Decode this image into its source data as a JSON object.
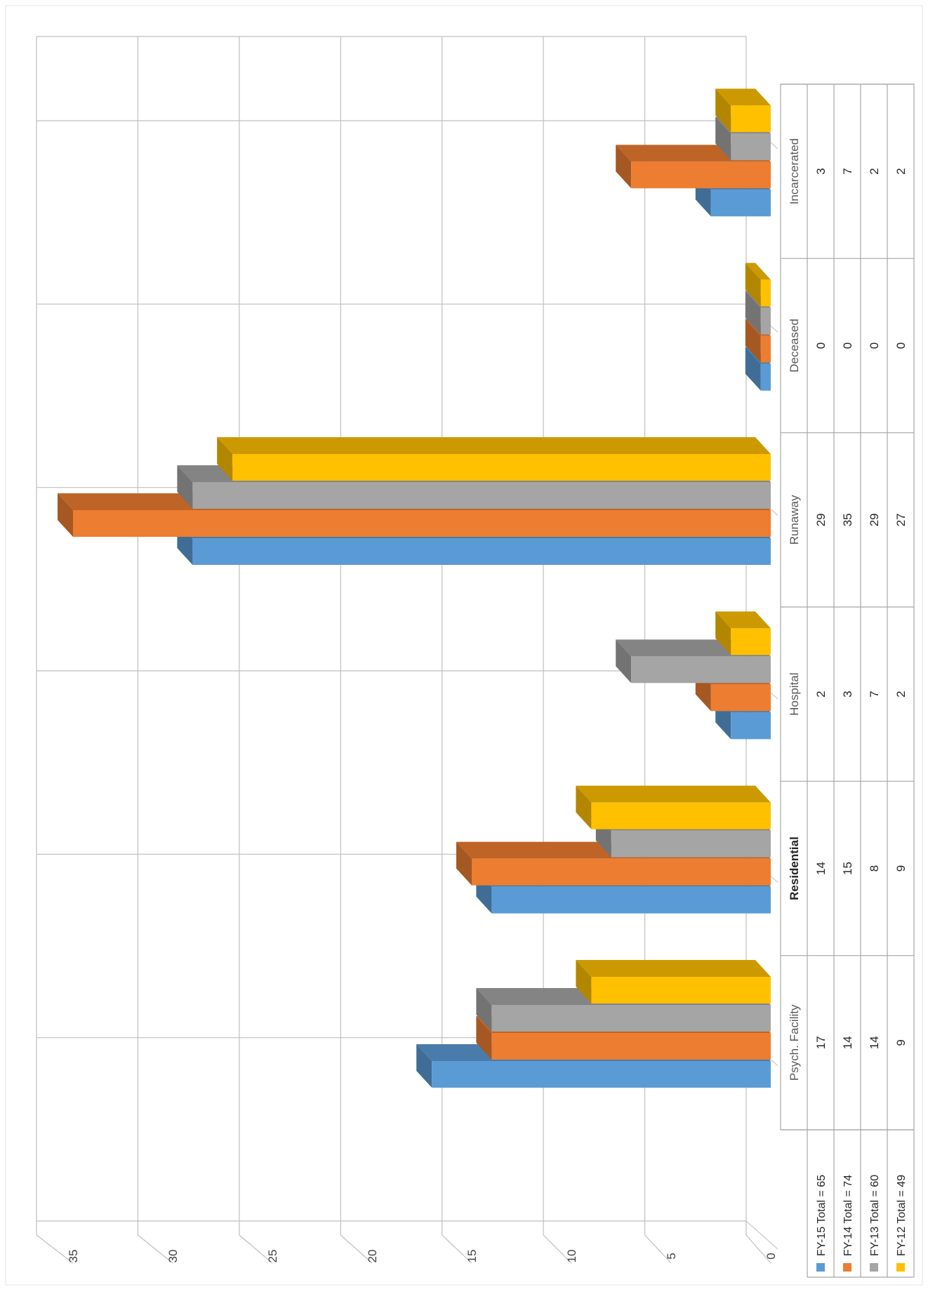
{
  "chart_data": {
    "type": "bar",
    "orientation": "rotated-90-clockwise-3d-clustered-column",
    "categories": [
      "Psych. Facility",
      "Residential",
      "Hospital",
      "Runaway",
      "Deceased",
      "Incarcerated"
    ],
    "emphasized_category": "Residential",
    "series": [
      {
        "name": "FY-15 Total = 65",
        "color": "#5b9bd5",
        "values": [
          17,
          14,
          2,
          29,
          0,
          3
        ]
      },
      {
        "name": "FY-14 Total = 74",
        "color": "#ed7d31",
        "values": [
          14,
          15,
          3,
          35,
          0,
          7
        ]
      },
      {
        "name": "FY-13 Total = 60",
        "color": "#a5a5a5",
        "values": [
          14,
          8,
          7,
          29,
          0,
          2
        ]
      },
      {
        "name": "FY-12 Total = 49",
        "color": "#ffc000",
        "values": [
          9,
          9,
          2,
          27,
          0,
          2
        ]
      }
    ],
    "yticks": [
      0,
      5,
      10,
      15,
      20,
      25,
      30,
      35
    ],
    "ylim": [
      0,
      35
    ],
    "grid": true,
    "data_table": true,
    "legend": "data-table-left"
  }
}
